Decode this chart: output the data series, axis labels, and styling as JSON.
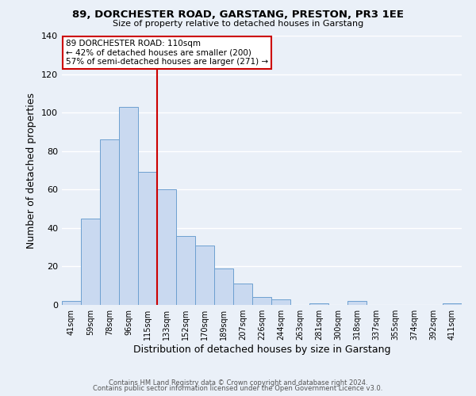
{
  "title": "89, DORCHESTER ROAD, GARSTANG, PRESTON, PR3 1EE",
  "subtitle": "Size of property relative to detached houses in Garstang",
  "xlabel": "Distribution of detached houses by size in Garstang",
  "ylabel": "Number of detached properties",
  "bin_labels": [
    "41sqm",
    "59sqm",
    "78sqm",
    "96sqm",
    "115sqm",
    "133sqm",
    "152sqm",
    "170sqm",
    "189sqm",
    "207sqm",
    "226sqm",
    "244sqm",
    "263sqm",
    "281sqm",
    "300sqm",
    "318sqm",
    "337sqm",
    "355sqm",
    "374sqm",
    "392sqm",
    "411sqm"
  ],
  "bar_heights": [
    2,
    45,
    86,
    103,
    69,
    60,
    36,
    31,
    19,
    11,
    4,
    3,
    0,
    1,
    0,
    2,
    0,
    0,
    0,
    0,
    1
  ],
  "bar_color": "#c9d9f0",
  "bar_edge_color": "#6da0d0",
  "ylim": [
    0,
    140
  ],
  "yticks": [
    0,
    20,
    40,
    60,
    80,
    100,
    120,
    140
  ],
  "vline_x": 4.5,
  "vline_color": "#cc0000",
  "annotation_title": "89 DORCHESTER ROAD: 110sqm",
  "annotation_line1": "← 42% of detached houses are smaller (200)",
  "annotation_line2": "57% of semi-detached houses are larger (271) →",
  "bg_color": "#eaf0f8",
  "grid_color": "#d8e4f0",
  "footer_line1": "Contains HM Land Registry data © Crown copyright and database right 2024.",
  "footer_line2": "Contains public sector information licensed under the Open Government Licence v3.0."
}
